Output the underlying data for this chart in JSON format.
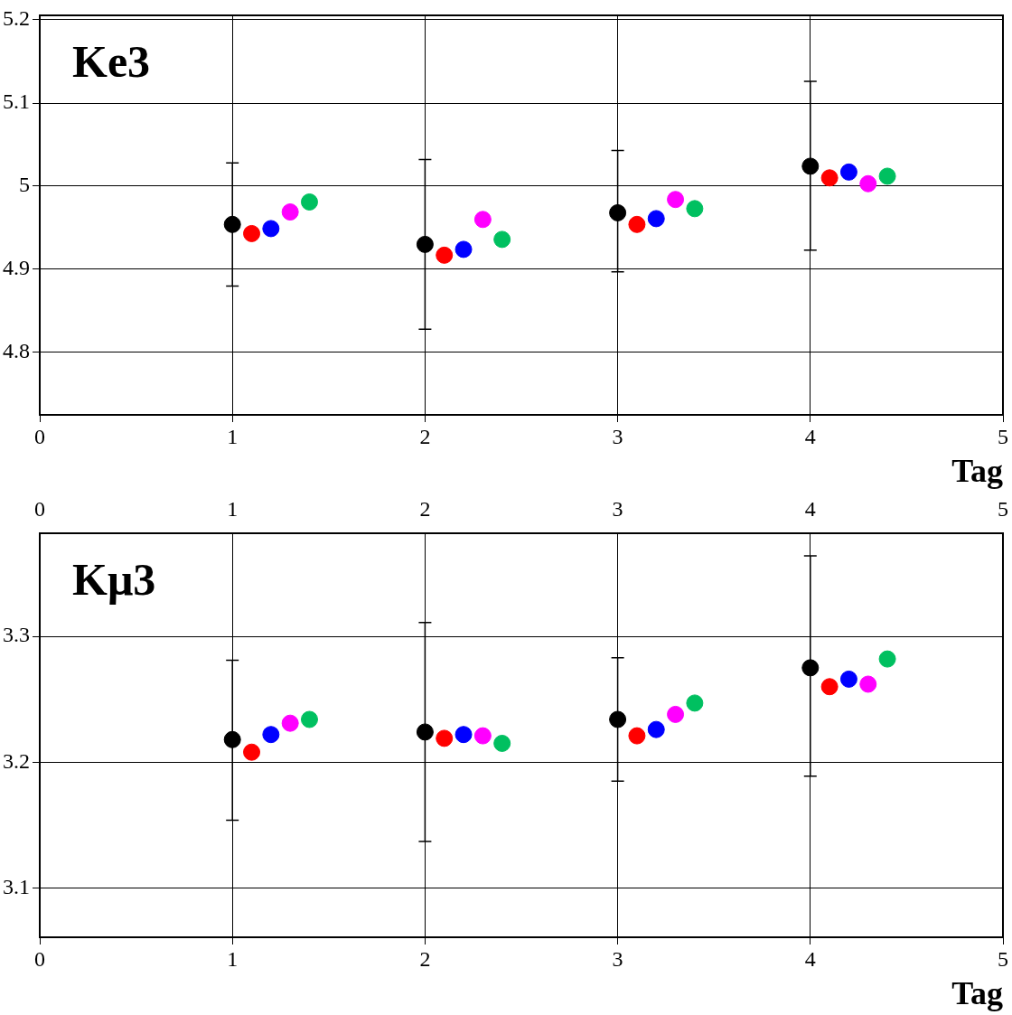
{
  "chart_data": [
    {
      "type": "scatter",
      "title": "Ke3",
      "xlabel": "Tag",
      "xlim": [
        0,
        5
      ],
      "xticks": [
        0,
        1,
        2,
        3,
        4,
        5
      ],
      "ylim": [
        4.725,
        5.205
      ],
      "yticks": [
        4.8,
        4.9,
        5,
        5.1,
        5.2
      ],
      "grid": true,
      "marker": "circle",
      "legend": false,
      "series": [
        {
          "color": "#000000",
          "x": [
            1,
            2,
            3,
            4
          ],
          "values": [
            4.954,
            4.93,
            4.968,
            5.024
          ],
          "errors": [
            [
              4.88,
              5.028
            ],
            [
              4.828,
              5.032
            ],
            [
              4.897,
              5.043
            ],
            [
              4.923,
              5.126
            ]
          ]
        },
        {
          "color": "#ff0000",
          "x": [
            1.1,
            2.1,
            3.1,
            4.1
          ],
          "values": [
            4.943,
            4.917,
            4.954,
            5.01
          ]
        },
        {
          "color": "#0000ff",
          "x": [
            1.2,
            2.2,
            3.2,
            4.2
          ],
          "values": [
            4.949,
            4.924,
            4.961,
            5.017
          ]
        },
        {
          "color": "#ff00ff",
          "x": [
            1.3,
            2.3,
            3.3,
            4.3
          ],
          "values": [
            4.969,
            4.96,
            4.984,
            5.003
          ]
        },
        {
          "color": "#00c060",
          "x": [
            1.4,
            2.4,
            3.4,
            4.4
          ],
          "values": [
            4.981,
            4.936,
            4.973,
            5.012
          ]
        }
      ]
    },
    {
      "type": "scatter",
      "title": "Kμ3",
      "xlabel": "Tag",
      "xlim": [
        0,
        5
      ],
      "xticks": [
        0,
        1,
        2,
        3,
        4,
        5
      ],
      "x2lim": [
        0,
        5
      ],
      "x2ticks": [
        0,
        1,
        2,
        3,
        4,
        5
      ],
      "ylim": [
        3.061,
        3.382
      ],
      "yticks": [
        3.1,
        3.2,
        3.3
      ],
      "grid": true,
      "marker": "circle",
      "legend": false,
      "series": [
        {
          "color": "#000000",
          "x": [
            1,
            2,
            3,
            4
          ],
          "values": [
            3.218,
            3.224,
            3.234,
            3.275
          ],
          "errors": [
            [
              3.154,
              3.281
            ],
            [
              3.137,
              3.311
            ],
            [
              3.185,
              3.283
            ],
            [
              3.189,
              3.364
            ]
          ]
        },
        {
          "color": "#ff0000",
          "x": [
            1.1,
            2.1,
            3.1,
            4.1
          ],
          "values": [
            3.208,
            3.219,
            3.221,
            3.26
          ]
        },
        {
          "color": "#0000ff",
          "x": [
            1.2,
            2.2,
            3.2,
            4.2
          ],
          "values": [
            3.222,
            3.222,
            3.226,
            3.266
          ]
        },
        {
          "color": "#ff00ff",
          "x": [
            1.3,
            2.3,
            3.3,
            4.3
          ],
          "values": [
            3.231,
            3.221,
            3.238,
            3.262
          ]
        },
        {
          "color": "#00c060",
          "x": [
            1.4,
            2.4,
            3.4,
            4.4
          ],
          "values": [
            3.234,
            3.215,
            3.247,
            3.282
          ]
        }
      ]
    }
  ]
}
